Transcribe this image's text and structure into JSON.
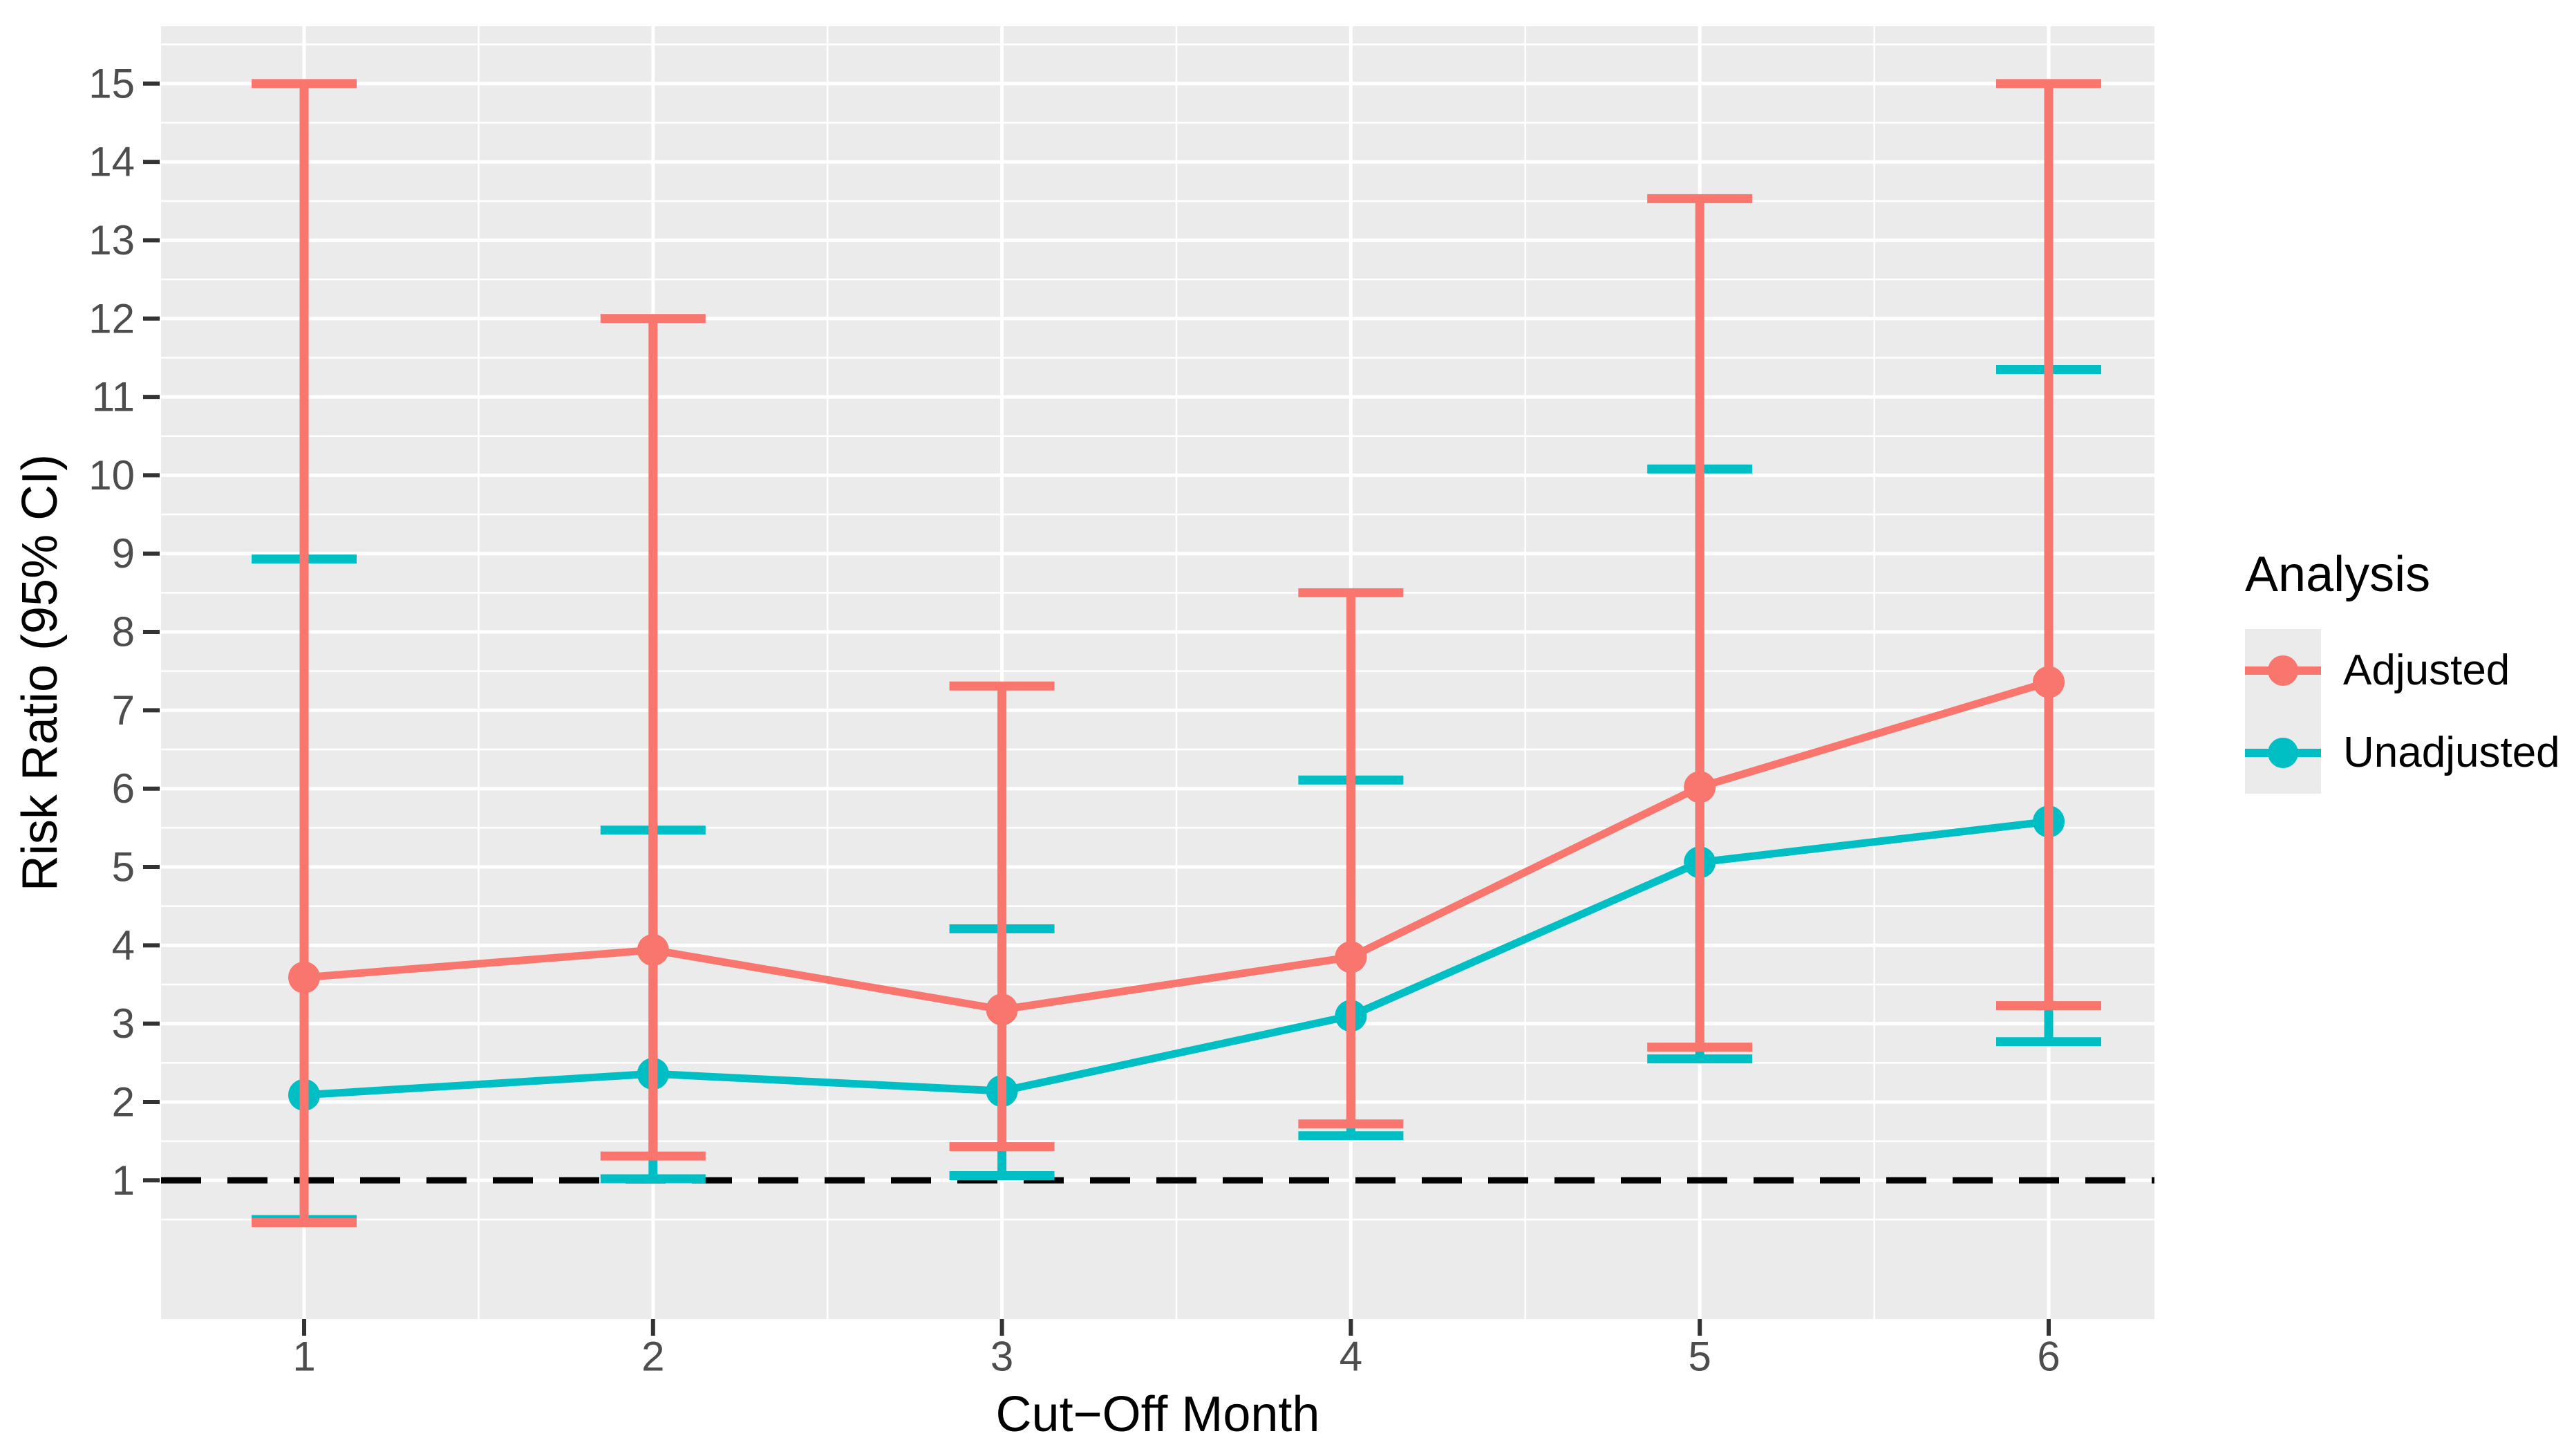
{
  "chart_data": {
    "type": "line",
    "x": [
      1,
      2,
      3,
      4,
      5,
      6
    ],
    "x_tick_labels": [
      "1",
      "2",
      "3",
      "4",
      "5",
      "6"
    ],
    "y_ticks": [
      1,
      2,
      3,
      4,
      5,
      6,
      7,
      8,
      9,
      10,
      11,
      12,
      13,
      14,
      15
    ],
    "xlabel": "Cut−Off Month",
    "ylabel": "Risk Ratio (95% CI)",
    "reference_line_y": 1,
    "legend_title": "Analysis",
    "legend_position": "right",
    "grid": "ggplot-gray-panel-white-gridlines",
    "ylim_displayed": [
      -0.8,
      15.7
    ],
    "series": [
      {
        "name": "Adjusted",
        "color": "#F8766D",
        "values": [
          3.59,
          3.94,
          3.18,
          3.85,
          6.02,
          7.36
        ],
        "ci_low": [
          0.46,
          1.31,
          1.43,
          1.72,
          2.7,
          3.23
        ],
        "ci_high": [
          15.0,
          12.0,
          7.31,
          8.5,
          13.53,
          15.0
        ]
      },
      {
        "name": "Unadjusted",
        "color": "#00BFC4",
        "values": [
          2.09,
          2.36,
          2.14,
          3.1,
          5.06,
          5.58
        ],
        "ci_low": [
          0.5,
          1.02,
          1.06,
          1.57,
          2.55,
          2.77
        ],
        "ci_high": [
          8.93,
          5.47,
          4.21,
          6.11,
          10.08,
          11.35
        ]
      }
    ],
    "colors": {
      "panel_background": "#ebebeb",
      "gridline": "#ffffff",
      "tick_text": "#4d4d4d",
      "tick_mark": "#333333",
      "reference_line": "#000000"
    }
  }
}
